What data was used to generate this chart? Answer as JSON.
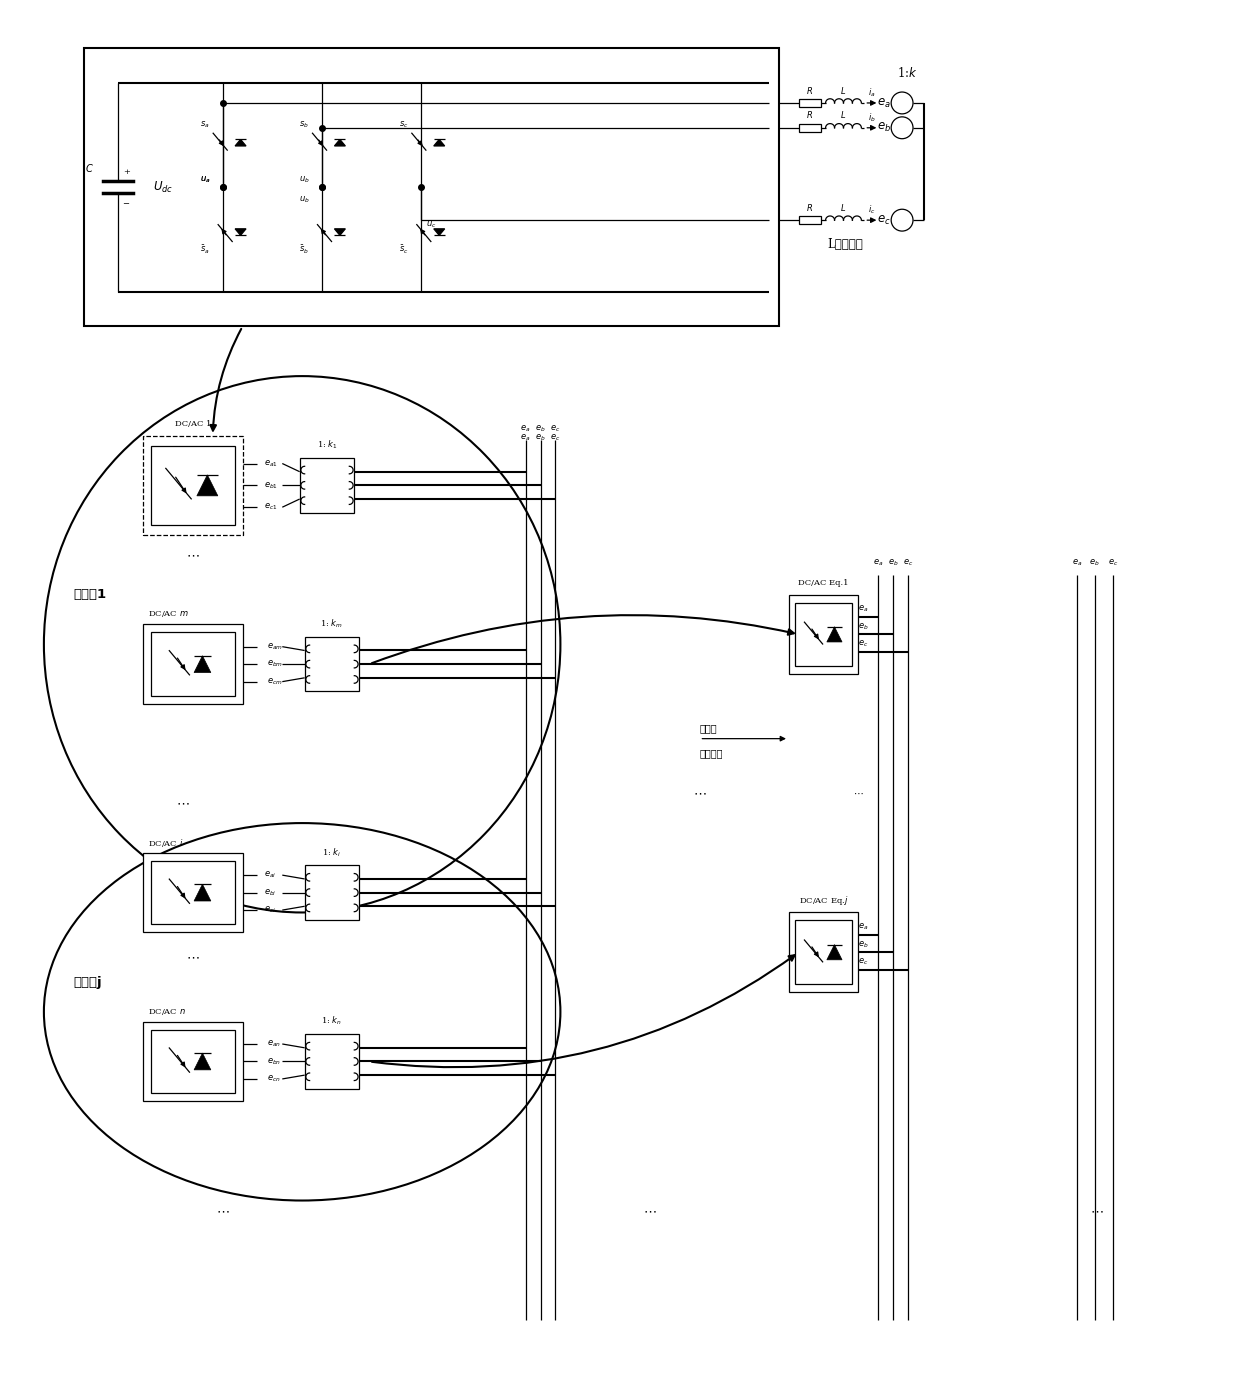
{
  "bg_color": "#ffffff",
  "line_color": "#000000",
  "fig_width": 12.4,
  "fig_height": 13.74,
  "filter_label": "L型滤波器",
  "group1_label": "同调群1",
  "groupj_label": "同调群j",
  "action_label": "作用量",
  "judge_label": "同调判据"
}
